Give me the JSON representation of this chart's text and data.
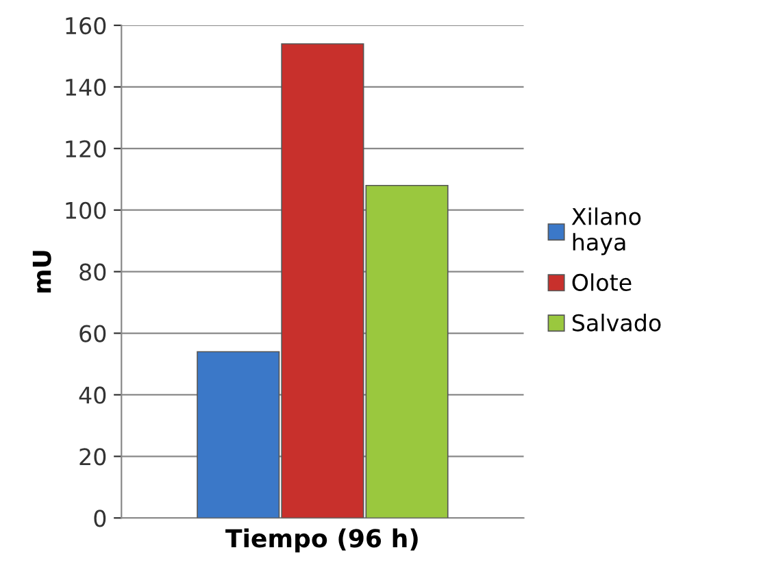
{
  "chart_data": {
    "type": "bar",
    "ylabel": "mU",
    "xlabel": "Tiempo (96 h)",
    "categories": [
      null
    ],
    "series": [
      {
        "name": "Xilano haya",
        "color": "#3b78c8",
        "values": [
          54
        ]
      },
      {
        "name": "Olote",
        "color": "#c8302c",
        "values": [
          154
        ]
      },
      {
        "name": "Salvado",
        "color": "#9ac83e",
        "values": [
          108
        ]
      }
    ],
    "ylim": [
      0,
      160
    ],
    "yticks": [
      0,
      20,
      40,
      60,
      80,
      100,
      120,
      140,
      160
    ],
    "grid": "y",
    "legend": "right"
  }
}
